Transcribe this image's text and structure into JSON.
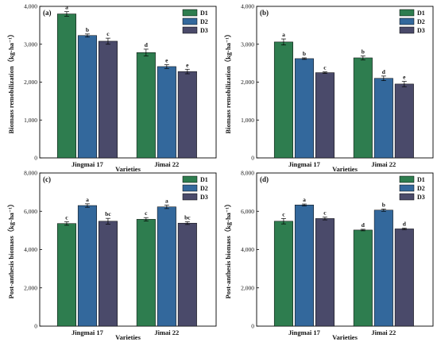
{
  "chart_data": [
    {
      "type": "bar",
      "panel_label": "(a)",
      "categories": [
        "Jingmai 17",
        "Jimai 22"
      ],
      "xlabel": "Varieties",
      "ylabel": "Biomass remobilization（kg·ha⁻¹）",
      "ylim": [
        0,
        4000
      ],
      "yticks": [
        "0",
        "1,000",
        "2,000",
        "3,000",
        "4,000"
      ],
      "legend": "top-right",
      "series": [
        {
          "name": "D1",
          "color": "#2e7d4f",
          "values": [
            3800,
            2780
          ],
          "errors": [
            60,
            90
          ],
          "labels": [
            "a",
            "d"
          ]
        },
        {
          "name": "D2",
          "color": "#33689c",
          "values": [
            3230,
            2410
          ],
          "errors": [
            40,
            50
          ],
          "labels": [
            "b",
            "e"
          ]
        },
        {
          "name": "D3",
          "color": "#4a4a6a",
          "values": [
            3080,
            2280
          ],
          "errors": [
            80,
            60
          ],
          "labels": [
            "c",
            "e"
          ]
        }
      ]
    },
    {
      "type": "bar",
      "panel_label": "(b)",
      "categories": [
        "Jingmai 17",
        "Jimai 22"
      ],
      "xlabel": "Varieties",
      "ylabel": "Biomass remobilization（kg·ha⁻¹）",
      "ylim": [
        0,
        4000
      ],
      "yticks": [
        "0",
        "1,000",
        "2,000",
        "3,000",
        "4,000"
      ],
      "legend": "top-right",
      "series": [
        {
          "name": "D1",
          "color": "#2e7d4f",
          "values": [
            3060,
            2640
          ],
          "errors": [
            80,
            50
          ],
          "labels": [
            "a",
            "b"
          ]
        },
        {
          "name": "D2",
          "color": "#33689c",
          "values": [
            2620,
            2100
          ],
          "errors": [
            20,
            60
          ],
          "labels": [
            "b",
            "d"
          ]
        },
        {
          "name": "D3",
          "color": "#4a4a6a",
          "values": [
            2250,
            1950
          ],
          "errors": [
            20,
            70
          ],
          "labels": [
            "c",
            "e"
          ]
        }
      ]
    },
    {
      "type": "bar",
      "panel_label": "(c)",
      "categories": [
        "Jingmai 17",
        "Jimai 22"
      ],
      "xlabel": "Varieties",
      "ylabel": "Post-anthesis biomass（kg·ha⁻¹）",
      "ylim": [
        0,
        8000
      ],
      "yticks": [
        "0",
        "2,000",
        "4,000",
        "6,000",
        "8,000"
      ],
      "legend": "top-right",
      "series": [
        {
          "name": "D1",
          "color": "#2e7d4f",
          "values": [
            5360,
            5580
          ],
          "errors": [
            90,
            90
          ],
          "labels": [
            "c",
            "c"
          ]
        },
        {
          "name": "D2",
          "color": "#33689c",
          "values": [
            6300,
            6230
          ],
          "errors": [
            90,
            90
          ],
          "labels": [
            "a",
            "a"
          ]
        },
        {
          "name": "D3",
          "color": "#4a4a6a",
          "values": [
            5480,
            5380
          ],
          "errors": [
            150,
            70
          ],
          "labels": [
            "bc",
            "bc"
          ]
        }
      ]
    },
    {
      "type": "bar",
      "panel_label": "(d)",
      "categories": [
        "Jingmai 17",
        "Jimai 22"
      ],
      "xlabel": "Varieties",
      "ylabel": "Post-anthesis biomass（kg·ha⁻¹）",
      "ylim": [
        0,
        8000
      ],
      "yticks": [
        "0",
        "2,000",
        "4,000",
        "6,000",
        "8,000"
      ],
      "legend": "top-right",
      "series": [
        {
          "name": "D1",
          "color": "#2e7d4f",
          "values": [
            5480,
            5020
          ],
          "errors": [
            140,
            40
          ],
          "labels": [
            "c",
            "d"
          ]
        },
        {
          "name": "D2",
          "color": "#33689c",
          "values": [
            6330,
            6060
          ],
          "errors": [
            50,
            60
          ],
          "labels": [
            "a",
            "b"
          ]
        },
        {
          "name": "D3",
          "color": "#4a4a6a",
          "values": [
            5620,
            5080
          ],
          "errors": [
            70,
            40
          ],
          "labels": [
            "c",
            "d"
          ]
        }
      ]
    }
  ]
}
